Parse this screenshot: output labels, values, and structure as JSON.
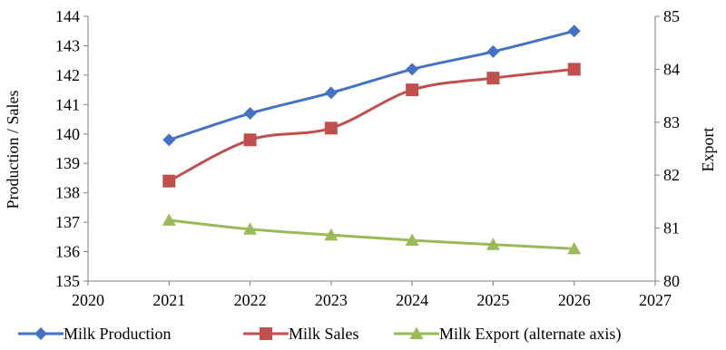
{
  "chart_data": {
    "type": "line",
    "x": [
      2021,
      2022,
      2023,
      2024,
      2025,
      2026
    ],
    "xlim": [
      2020,
      2027
    ],
    "xticks": [
      2020,
      2021,
      2022,
      2023,
      2024,
      2025,
      2026,
      2027
    ],
    "ylabel": "Production / Sales",
    "ylim": [
      135,
      144
    ],
    "yticks": [
      135,
      136,
      137,
      138,
      139,
      140,
      141,
      142,
      143,
      144
    ],
    "y2label": "Export",
    "y2lim": [
      80,
      85
    ],
    "y2ticks": [
      80,
      81,
      82,
      83,
      84,
      85
    ],
    "grid": false,
    "legend_position": "bottom",
    "series": [
      {
        "name": "Milk Production",
        "axis": "left",
        "color": "#4472C4",
        "marker": "diamond",
        "values": [
          139.8,
          140.7,
          141.4,
          142.2,
          142.8,
          143.5
        ]
      },
      {
        "name": "Milk Sales",
        "axis": "left",
        "color": "#C0504D",
        "marker": "square",
        "values": [
          138.4,
          139.8,
          140.2,
          141.5,
          141.9,
          142.2
        ]
      },
      {
        "name": "Milk Export (alternate axis)",
        "axis": "right",
        "color": "#9BBB59",
        "marker": "triangle",
        "values": [
          81.15,
          80.98,
          80.87,
          80.77,
          80.69,
          80.61
        ]
      }
    ]
  }
}
